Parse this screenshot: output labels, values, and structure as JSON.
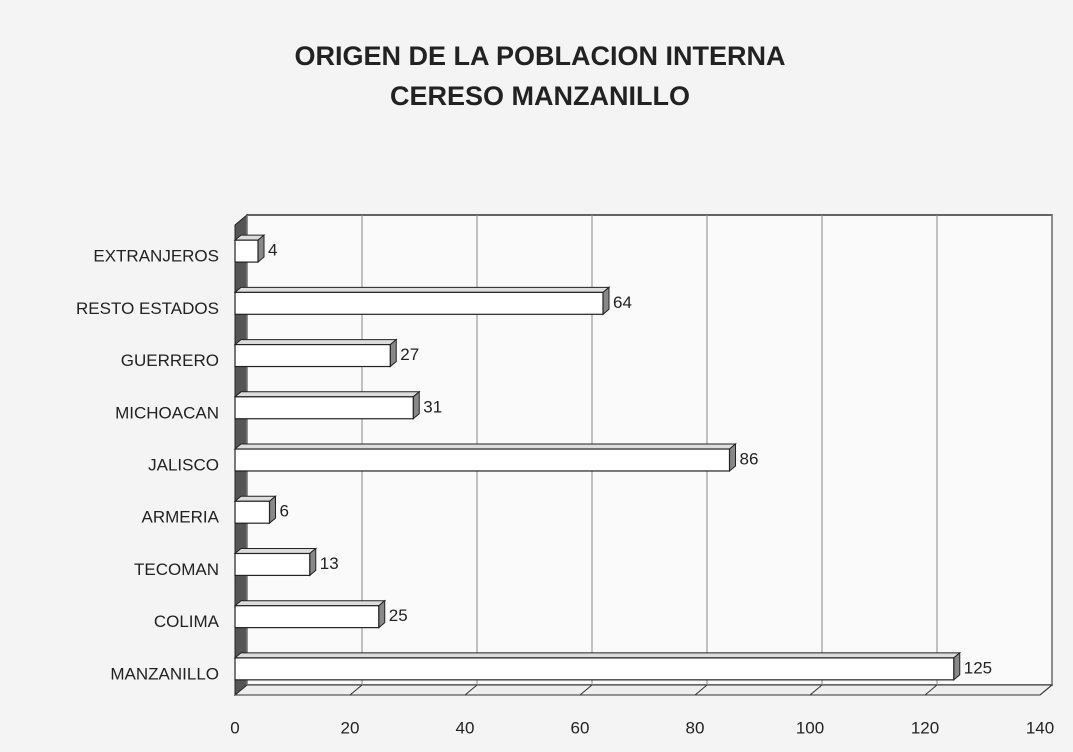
{
  "chart_data": {
    "type": "bar",
    "orientation": "horizontal",
    "title": "ORIGEN DE LA POBLACION INTERNA",
    "subtitle": "CERESO MANZANILLO",
    "categories": [
      "EXTRANJEROS",
      "RESTO ESTADOS",
      "GUERRERO",
      "MICHOACAN",
      "JALISCO",
      "ARMERIA",
      "TECOMAN",
      "COLIMA",
      "MANZANILLO"
    ],
    "values": [
      4,
      64,
      27,
      31,
      86,
      6,
      13,
      25,
      125
    ],
    "color": "#ffffff",
    "xlim": [
      0,
      140
    ],
    "xticks": [
      0,
      20,
      40,
      60,
      80,
      100,
      120,
      140
    ],
    "grid": true
  }
}
